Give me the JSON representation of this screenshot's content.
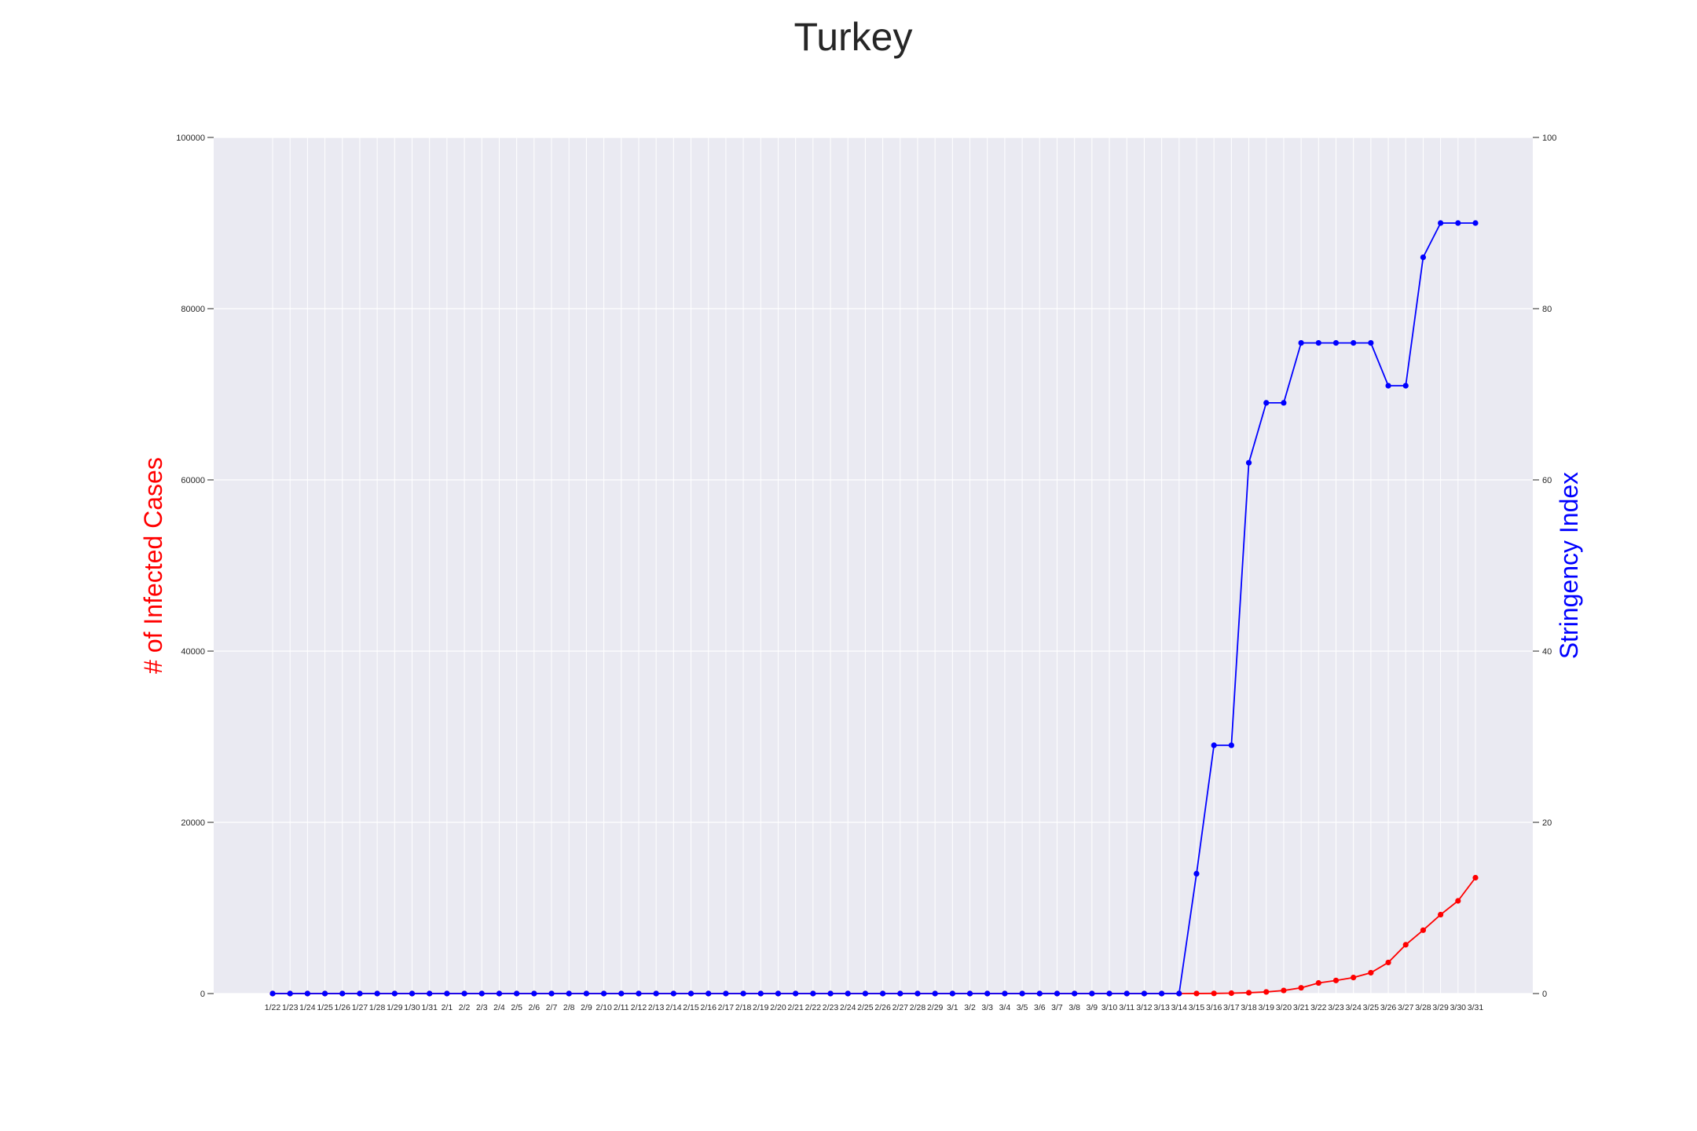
{
  "chart_data": {
    "type": "line",
    "title": "Turkey",
    "xlabel": "",
    "ylabel_left": "# of Infected Cases",
    "ylabel_right": "Stringency Index",
    "ylim_left": [
      0,
      100000
    ],
    "ylim_right": [
      0,
      100
    ],
    "yticks_left": [
      "0",
      "20000",
      "40000",
      "60000",
      "80000",
      "100000"
    ],
    "yticks_right": [
      "0",
      "20",
      "40",
      "60",
      "80",
      "100"
    ],
    "grid": true,
    "categories": [
      "1/22",
      "1/23",
      "1/24",
      "1/25",
      "1/26",
      "1/27",
      "1/28",
      "1/29",
      "1/30",
      "1/31",
      "2/1",
      "2/2",
      "2/3",
      "2/4",
      "2/5",
      "2/6",
      "2/7",
      "2/8",
      "2/9",
      "2/10",
      "2/11",
      "2/12",
      "2/13",
      "2/14",
      "2/15",
      "2/16",
      "2/17",
      "2/18",
      "2/19",
      "2/20",
      "2/21",
      "2/22",
      "2/23",
      "2/24",
      "2/25",
      "2/26",
      "2/27",
      "2/28",
      "2/29",
      "3/1",
      "3/2",
      "3/3",
      "3/4",
      "3/5",
      "3/6",
      "3/7",
      "3/8",
      "3/9",
      "3/10",
      "3/11",
      "3/12",
      "3/13",
      "3/14",
      "3/15",
      "3/16",
      "3/17",
      "3/18",
      "3/19",
      "3/20",
      "3/21",
      "3/22",
      "3/23",
      "3/24",
      "3/25",
      "3/26",
      "3/27",
      "3/28",
      "3/29",
      "3/30",
      "3/31"
    ],
    "series": [
      {
        "name": "",
        "axis": "left",
        "color": "#ff0000",
        "values": [
          0,
          0,
          0,
          0,
          0,
          0,
          0,
          0,
          0,
          0,
          0,
          0,
          0,
          0,
          0,
          0,
          0,
          0,
          0,
          0,
          0,
          0,
          0,
          0,
          0,
          0,
          0,
          0,
          0,
          0,
          0,
          0,
          0,
          0,
          0,
          0,
          0,
          0,
          0,
          0,
          0,
          0,
          0,
          0,
          0,
          0,
          0,
          0,
          0,
          0,
          0,
          0,
          0,
          6,
          18,
          47,
          98,
          191,
          359,
          670,
          1236,
          1529,
          1872,
          2433,
          3629,
          5698,
          7402,
          9217,
          10827,
          13531
        ]
      },
      {
        "name": "",
        "axis": "right",
        "color": "#0000ff",
        "values": [
          0,
          0,
          0,
          0,
          0,
          0,
          0,
          0,
          0,
          0,
          0,
          0,
          0,
          0,
          0,
          0,
          0,
          0,
          0,
          0,
          0,
          0,
          0,
          0,
          0,
          0,
          0,
          0,
          0,
          0,
          0,
          0,
          0,
          0,
          0,
          0,
          0,
          0,
          0,
          0,
          0,
          0,
          0,
          0,
          0,
          0,
          0,
          0,
          0,
          0,
          0,
          0,
          0,
          14,
          29,
          29,
          62,
          69,
          69,
          76,
          76,
          76,
          76,
          76,
          71,
          71,
          86,
          90,
          90,
          90
        ]
      }
    ]
  }
}
